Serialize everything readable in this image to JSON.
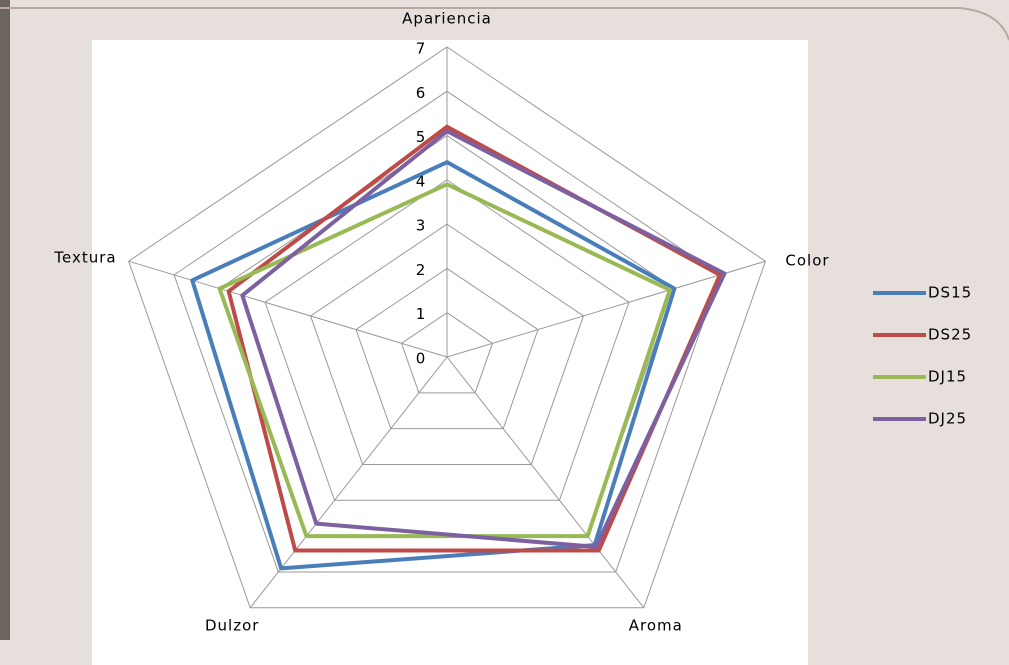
{
  "chart_data": {
    "type": "radar",
    "categories": [
      "Apariencia",
      "Color",
      "Aroma",
      "Dulzor",
      "Textura"
    ],
    "series": [
      {
        "name": "DS15",
        "color": "#4a7ebb",
        "values": [
          4.4,
          5.0,
          5.25,
          5.9,
          5.6
        ]
      },
      {
        "name": "DS25",
        "color": "#be4b48",
        "values": [
          5.2,
          6.0,
          5.4,
          5.4,
          4.8
        ]
      },
      {
        "name": "DJ15",
        "color": "#98b954",
        "values": [
          3.9,
          4.9,
          5.0,
          5.0,
          5.0
        ]
      },
      {
        "name": "DJ25",
        "color": "#7d60a0",
        "values": [
          5.1,
          6.1,
          5.3,
          4.65,
          4.5
        ]
      }
    ],
    "ylim": [
      0,
      7
    ],
    "yticks": [
      0,
      1,
      2,
      3,
      4,
      5,
      6,
      7
    ],
    "grid": true,
    "legend": "right"
  }
}
